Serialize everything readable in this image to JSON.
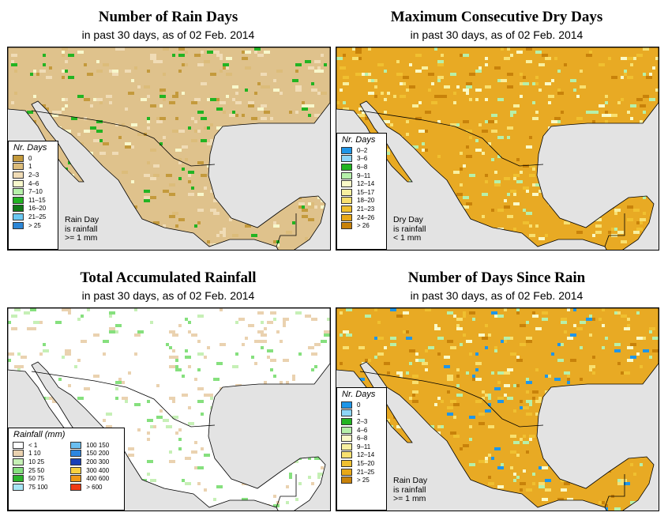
{
  "panels": {
    "rain_days": {
      "title": "Number of Rain Days",
      "subtitle": "in past 30 days, as of  02 Feb. 2014",
      "legend_title": "Nr. Days",
      "legend": [
        {
          "label": "0",
          "color": "#c49a3c"
        },
        {
          "label": "1",
          "color": "#dcbc7a"
        },
        {
          "label": "2–3",
          "color": "#f0dcb6"
        },
        {
          "label": "4–6",
          "color": "#f8f8cc"
        },
        {
          "label": "7–10",
          "color": "#b6f0aa"
        },
        {
          "label": "11–15",
          "color": "#22b422"
        },
        {
          "label": "16–20",
          "color": "#117a17"
        },
        {
          "label": "21–25",
          "color": "#6ac8f2"
        },
        {
          "label": "> 25",
          "color": "#2c86d6"
        }
      ],
      "note": [
        "Rain Day",
        "is rainfall",
        ">= 1 mm"
      ]
    },
    "dry_days": {
      "title": "Maximum Consecutive Dry Days",
      "subtitle": "in past 30 days, as of  02 Feb. 2014",
      "legend_title": "Nr. Days",
      "legend": [
        {
          "label": "0–2",
          "color": "#1f96e8"
        },
        {
          "label": "3–6",
          "color": "#8ed6f8"
        },
        {
          "label": "6–8",
          "color": "#22b422"
        },
        {
          "label": "9–11",
          "color": "#b6f0aa"
        },
        {
          "label": "12–14",
          "color": "#fafac8"
        },
        {
          "label": "15–17",
          "color": "#f8f0a0"
        },
        {
          "label": "18–20",
          "color": "#f8e070"
        },
        {
          "label": "21–23",
          "color": "#f0c030"
        },
        {
          "label": "24–26",
          "color": "#e8a818"
        },
        {
          "label": "> 26",
          "color": "#c8820a"
        }
      ],
      "note": [
        "Dry Day",
        "is rainfall",
        "< 1 mm"
      ]
    },
    "rainfall": {
      "title": "Total Accumulated Rainfall",
      "subtitle": "in past 30 days, as of  02 Feb. 2014",
      "legend_title": "Rainfall (mm)",
      "legend_left": [
        {
          "label": "< 1",
          "color": "#ffffff"
        },
        {
          "label": "1    10",
          "color": "#ead2b0"
        },
        {
          "label": "10    25",
          "color": "#c6f0b6"
        },
        {
          "label": "25    50",
          "color": "#86e07e"
        },
        {
          "label": "50    75",
          "color": "#2cb62c"
        },
        {
          "label": "75    100",
          "color": "#a6e6f6"
        }
      ],
      "legend_right": [
        {
          "label": "100  150",
          "color": "#6abef0"
        },
        {
          "label": "150  200",
          "color": "#2c86e0"
        },
        {
          "label": "200  300",
          "color": "#1840b8"
        },
        {
          "label": "300  400",
          "color": "#f8d040"
        },
        {
          "label": "400  600",
          "color": "#f09818"
        },
        {
          "label": "> 600",
          "color": "#f03a14"
        }
      ]
    },
    "since_rain": {
      "title": "Number of Days Since Rain",
      "subtitle": "in past 30 days, as of  02 Feb. 2014",
      "legend_title": "Nr. Days",
      "legend": [
        {
          "label": "0",
          "color": "#1f96e8"
        },
        {
          "label": "1",
          "color": "#8ed6f8"
        },
        {
          "label": "2–3",
          "color": "#22b422"
        },
        {
          "label": "4–6",
          "color": "#b6f0aa"
        },
        {
          "label": "6–8",
          "color": "#fafac8"
        },
        {
          "label": "9–11",
          "color": "#f8f0a0"
        },
        {
          "label": "12–14",
          "color": "#f8e070"
        },
        {
          "label": "15–20",
          "color": "#f0c030"
        },
        {
          "label": "21–25",
          "color": "#e8a818"
        },
        {
          "label": "> 25",
          "color": "#c8820a"
        }
      ],
      "note": [
        "Rain Day",
        "is rainfall",
        ">= 1 mm"
      ]
    }
  }
}
